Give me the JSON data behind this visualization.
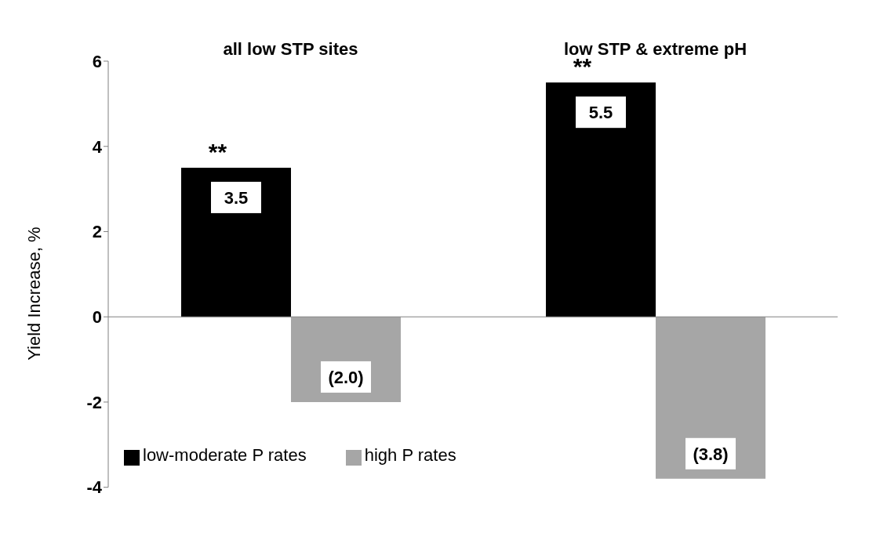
{
  "chart_data": {
    "type": "bar",
    "ylabel": "Yield Increase, %",
    "categories": [
      "all low STP sites",
      "low STP & extreme pH"
    ],
    "series": [
      {
        "name": "low-moderate P rates",
        "color": "#000000",
        "values": [
          3.5,
          5.5
        ],
        "value_labels": [
          "3.5",
          "5.5"
        ]
      },
      {
        "name": "high P rates",
        "color": "#a6a6a6",
        "values": [
          -2.0,
          -3.8
        ],
        "value_labels": [
          "(2.0)",
          "(3.8)"
        ]
      }
    ],
    "ylim": [
      -4,
      6
    ],
    "yticks": [
      -4,
      -2,
      0,
      2,
      4,
      6
    ],
    "legend": "bottom left",
    "annotations": [
      {
        "text": "**",
        "x": "all low STP sites",
        "y": 3.5
      },
      {
        "text": "**",
        "x": "low STP & extreme pH",
        "y": 5.5
      }
    ]
  }
}
